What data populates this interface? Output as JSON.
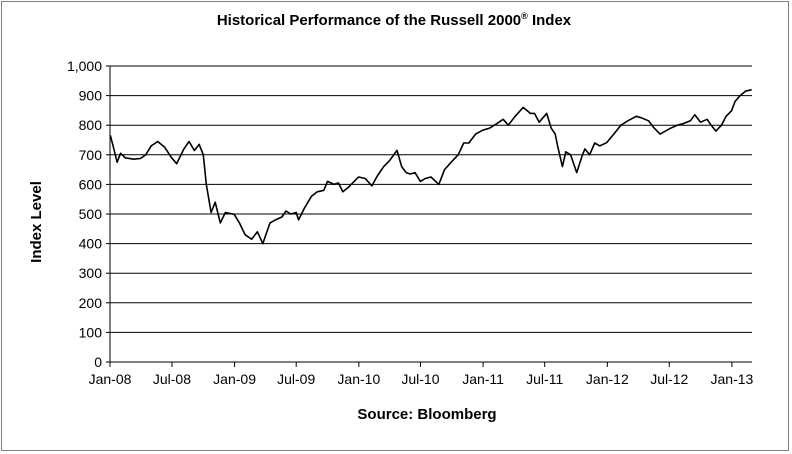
{
  "chart_data": {
    "type": "line",
    "title_main": "Historical Performance of the Russell 2000",
    "title_mark": "®",
    "title_suffix": " Index",
    "xlabel": "Source: Bloomberg",
    "ylabel": "Index Level",
    "ylim": [
      0,
      1000
    ],
    "y_ticks": [
      "0",
      "100",
      "200",
      "300",
      "400",
      "500",
      "600",
      "700",
      "800",
      "900",
      "1,000"
    ],
    "x_ticks": [
      "Jan-08",
      "Jul-08",
      "Jan-09",
      "Jul-09",
      "Jan-10",
      "Jul-10",
      "Jan-11",
      "Jul-11",
      "Jan-12",
      "Jul-12",
      "Jan-13"
    ],
    "grid": true,
    "series": [
      {
        "color": "#000000",
        "x": [
          "2008-01-02",
          "2008-01-10",
          "2008-01-22",
          "2008-02-01",
          "2008-02-15",
          "2008-03-10",
          "2008-03-31",
          "2008-04-15",
          "2008-05-01",
          "2008-05-20",
          "2008-06-10",
          "2008-06-30",
          "2008-07-15",
          "2008-08-05",
          "2008-08-20",
          "2008-09-05",
          "2008-09-19",
          "2008-10-01",
          "2008-10-10",
          "2008-10-24",
          "2008-11-05",
          "2008-11-20",
          "2008-12-05",
          "2008-12-31",
          "2009-01-15",
          "2009-02-01",
          "2009-02-20",
          "2009-03-09",
          "2009-03-25",
          "2009-04-15",
          "2009-05-01",
          "2009-05-20",
          "2009-06-01",
          "2009-06-15",
          "2009-07-01",
          "2009-07-08",
          "2009-07-25",
          "2009-08-15",
          "2009-09-01",
          "2009-09-20",
          "2009-10-01",
          "2009-10-20",
          "2009-11-02",
          "2009-11-15",
          "2009-12-01",
          "2009-12-31",
          "2010-01-20",
          "2010-02-08",
          "2010-02-25",
          "2010-03-15",
          "2010-04-01",
          "2010-04-23",
          "2010-05-07",
          "2010-05-20",
          "2010-06-01",
          "2010-06-15",
          "2010-07-01",
          "2010-07-15",
          "2010-08-01",
          "2010-08-24",
          "2010-09-10",
          "2010-09-30",
          "2010-10-20",
          "2010-11-05",
          "2010-11-20",
          "2010-12-10",
          "2010-12-31",
          "2011-01-20",
          "2011-02-10",
          "2011-03-01",
          "2011-03-16",
          "2011-04-05",
          "2011-04-29",
          "2011-05-20",
          "2011-06-01",
          "2011-06-15",
          "2011-07-07",
          "2011-07-20",
          "2011-08-01",
          "2011-08-08",
          "2011-08-22",
          "2011-09-01",
          "2011-09-15",
          "2011-10-03",
          "2011-10-20",
          "2011-10-27",
          "2011-11-10",
          "2011-11-25",
          "2011-12-10",
          "2011-12-30",
          "2012-01-20",
          "2012-02-10",
          "2012-03-01",
          "2012-03-26",
          "2012-04-10",
          "2012-05-01",
          "2012-05-18",
          "2012-06-04",
          "2012-06-20",
          "2012-07-05",
          "2012-07-25",
          "2012-08-10",
          "2012-09-01",
          "2012-09-14",
          "2012-10-01",
          "2012-10-20",
          "2012-11-01",
          "2012-11-15",
          "2012-12-01",
          "2012-12-15",
          "2012-12-31",
          "2013-01-10",
          "2013-01-25",
          "2013-02-10",
          "2013-02-28"
        ],
        "y": [
          766,
          730,
          675,
          705,
          690,
          685,
          688,
          700,
          730,
          745,
          725,
          690,
          670,
          720,
          745,
          715,
          735,
          700,
          600,
          505,
          540,
          470,
          505,
          499,
          470,
          430,
          415,
          440,
          400,
          470,
          480,
          490,
          510,
          500,
          505,
          480,
          520,
          560,
          575,
          580,
          610,
          600,
          605,
          575,
          590,
          625,
          620,
          595,
          630,
          660,
          680,
          715,
          660,
          640,
          635,
          640,
          610,
          620,
          625,
          600,
          650,
          676,
          700,
          740,
          740,
          770,
          783,
          790,
          805,
          820,
          800,
          830,
          860,
          840,
          840,
          810,
          840,
          790,
          770,
          730,
          660,
          710,
          700,
          640,
          700,
          720,
          700,
          740,
          730,
          741,
          770,
          800,
          815,
          830,
          825,
          815,
          790,
          770,
          780,
          790,
          800,
          805,
          815,
          835,
          810,
          820,
          800,
          780,
          800,
          830,
          849,
          880,
          900,
          915,
          920
        ]
      }
    ]
  }
}
